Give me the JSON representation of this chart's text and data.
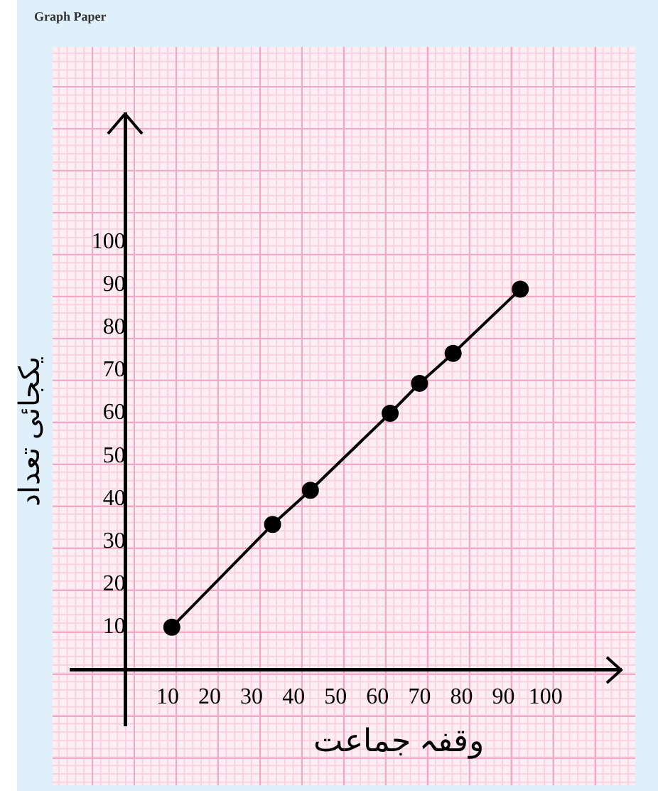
{
  "chart_data": {
    "type": "line",
    "title": "Graph Paper",
    "xlabel": "وقفہ جماعت",
    "ylabel": "یکجائی تعداد",
    "x": [
      11,
      35,
      44,
      63,
      70,
      78,
      94
    ],
    "values": [
      10,
      34,
      42,
      60,
      67,
      74,
      89
    ],
    "color": "#000000",
    "marker": "circle",
    "xlim": [
      -13,
      118
    ],
    "ylim": [
      -13,
      130
    ],
    "xticks": [
      10,
      20,
      30,
      40,
      50,
      60,
      70,
      80,
      90,
      100
    ],
    "yticks": [
      10,
      20,
      30,
      40,
      50,
      60,
      70,
      80,
      90,
      100
    ]
  }
}
